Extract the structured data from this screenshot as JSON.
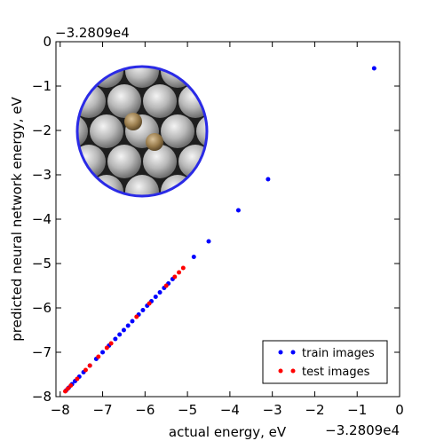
{
  "chart_data": {
    "type": "scatter",
    "xlabel": "actual energy, eV",
    "ylabel": "predicted neural network energy, eV",
    "x_offset_label": "−3.2809e4",
    "y_offset_label": "−3.2809e4",
    "xlim": [
      -8.1,
      0
    ],
    "ylim": [
      -8,
      0
    ],
    "x_ticks": [
      -8,
      -7,
      -6,
      -5,
      -4,
      -3,
      -2,
      -1,
      0
    ],
    "y_ticks": [
      -8,
      -7,
      -6,
      -5,
      -4,
      -3,
      -2,
      -1,
      0
    ],
    "x_tick_labels": [
      "−8",
      "−7",
      "−6",
      "−5",
      "−4",
      "−3",
      "−2",
      "−1",
      "0"
    ],
    "y_tick_labels": [
      "−8",
      "−7",
      "−6",
      "−5",
      "−4",
      "−3",
      "−2",
      "−1",
      "0"
    ],
    "grid": false,
    "legend_position": "lower-right",
    "inset": "circular-atomic-structure-image",
    "series": [
      {
        "name": "train images",
        "color": "#0000ff",
        "points": [
          [
            -0.6,
            -0.6
          ],
          [
            -3.1,
            -3.1
          ],
          [
            -3.8,
            -3.8
          ],
          [
            -4.5,
            -4.5
          ],
          [
            -4.85,
            -4.85
          ],
          [
            -5.35,
            -5.35
          ],
          [
            -5.45,
            -5.45
          ],
          [
            -5.55,
            -5.55
          ],
          [
            -5.65,
            -5.65
          ],
          [
            -5.75,
            -5.75
          ],
          [
            -5.85,
            -5.85
          ],
          [
            -5.95,
            -5.95
          ],
          [
            -6.05,
            -6.05
          ],
          [
            -6.15,
            -6.15
          ],
          [
            -6.3,
            -6.3
          ],
          [
            -6.4,
            -6.4
          ],
          [
            -6.5,
            -6.5
          ],
          [
            -6.6,
            -6.6
          ],
          [
            -6.7,
            -6.7
          ],
          [
            -6.85,
            -6.85
          ],
          [
            -7.0,
            -7.0
          ],
          [
            -7.15,
            -7.15
          ],
          [
            -7.3,
            -7.3
          ],
          [
            -7.45,
            -7.45
          ],
          [
            -7.55,
            -7.55
          ],
          [
            -7.65,
            -7.65
          ],
          [
            -7.72,
            -7.72
          ],
          [
            -7.8,
            -7.8
          ],
          [
            -7.86,
            -7.86
          ]
        ]
      },
      {
        "name": "test images",
        "color": "#ff0000",
        "points": [
          [
            -5.1,
            -5.1
          ],
          [
            -5.2,
            -5.2
          ],
          [
            -5.3,
            -5.3
          ],
          [
            -5.5,
            -5.5
          ],
          [
            -5.9,
            -5.9
          ],
          [
            -6.2,
            -6.2
          ],
          [
            -6.8,
            -6.8
          ],
          [
            -6.9,
            -6.9
          ],
          [
            -7.1,
            -7.1
          ],
          [
            -7.3,
            -7.3
          ],
          [
            -7.4,
            -7.4
          ],
          [
            -7.6,
            -7.6
          ],
          [
            -7.75,
            -7.75
          ],
          [
            -7.82,
            -7.82
          ],
          [
            -7.88,
            -7.88
          ]
        ]
      }
    ]
  }
}
